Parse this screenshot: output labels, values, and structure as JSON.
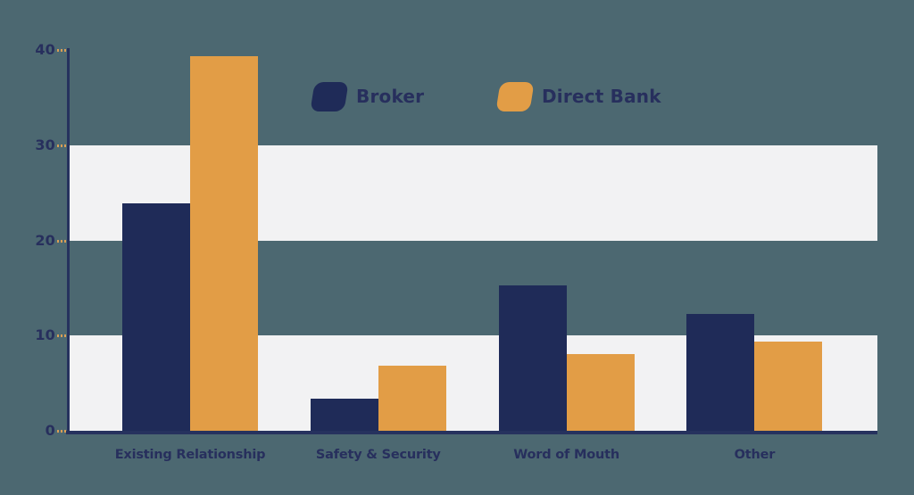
{
  "chart_data": {
    "type": "bar",
    "categories": [
      "Existing Relationship",
      "Safety & Security",
      "Word of Mouth",
      "Other"
    ],
    "series": [
      {
        "name": "Broker",
        "color": "#1F2B58",
        "values": [
          23.9,
          3.4,
          15.3,
          12.3
        ]
      },
      {
        "name": "Direct Bank",
        "color": "#E29D46",
        "values": [
          39.3,
          6.8,
          8.1,
          9.4
        ]
      }
    ],
    "ylim": [
      0,
      40
    ],
    "yticks": [
      0,
      10,
      20,
      30,
      40
    ],
    "grid": "striped horizontal bands",
    "bands": [
      [
        0,
        10
      ],
      [
        20,
        30
      ]
    ],
    "legend_position": "top-center"
  },
  "colors": {
    "background": "#4C6871",
    "band": "#F2F2F3",
    "axis": "#26325E",
    "tick_mark": "#D99E56",
    "label_text": "#272F5D"
  }
}
